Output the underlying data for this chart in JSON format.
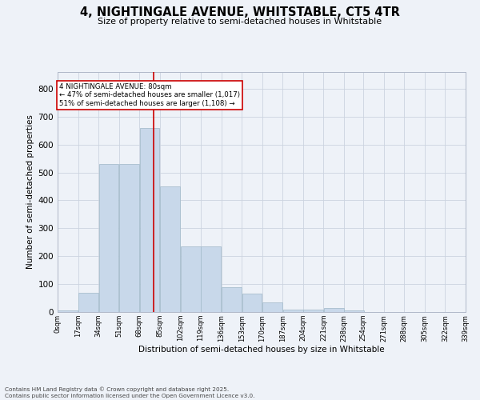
{
  "title_line1": "4, NIGHTINGALE AVENUE, WHITSTABLE, CT5 4TR",
  "title_line2": "Size of property relative to semi-detached houses in Whitstable",
  "xlabel": "Distribution of semi-detached houses by size in Whitstable",
  "ylabel": "Number of semi-detached properties",
  "bin_labels": [
    "0sqm",
    "17sqm",
    "34sqm",
    "51sqm",
    "68sqm",
    "85sqm",
    "102sqm",
    "119sqm",
    "136sqm",
    "153sqm",
    "170sqm",
    "187sqm",
    "204sqm",
    "221sqm",
    "238sqm",
    "254sqm",
    "271sqm",
    "288sqm",
    "305sqm",
    "322sqm",
    "339sqm"
  ],
  "bin_edges": [
    0,
    17,
    34,
    51,
    68,
    85,
    102,
    119,
    136,
    153,
    170,
    187,
    204,
    221,
    238,
    254,
    271,
    288,
    305,
    322,
    339
  ],
  "bar_heights": [
    5,
    70,
    530,
    530,
    660,
    450,
    235,
    235,
    90,
    65,
    35,
    10,
    10,
    15,
    5,
    0,
    0,
    0,
    0,
    0
  ],
  "bar_color": "#c8d8ea",
  "bar_edge_color": "#a8bece",
  "grid_color": "#ccd4e0",
  "property_size": 80,
  "red_line_color": "#cc0000",
  "annotation_text_line1": "4 NIGHTINGALE AVENUE: 80sqm",
  "annotation_text_line2": "← 47% of semi-detached houses are smaller (1,017)",
  "annotation_text_line3": "51% of semi-detached houses are larger (1,108) →",
  "annotation_box_facecolor": "#ffffff",
  "annotation_box_edgecolor": "#cc0000",
  "footer_line1": "Contains HM Land Registry data © Crown copyright and database right 2025.",
  "footer_line2": "Contains public sector information licensed under the Open Government Licence v3.0.",
  "ylim": [
    0,
    860
  ],
  "yticks": [
    0,
    100,
    200,
    300,
    400,
    500,
    600,
    700,
    800
  ],
  "background_color": "#eef2f8"
}
